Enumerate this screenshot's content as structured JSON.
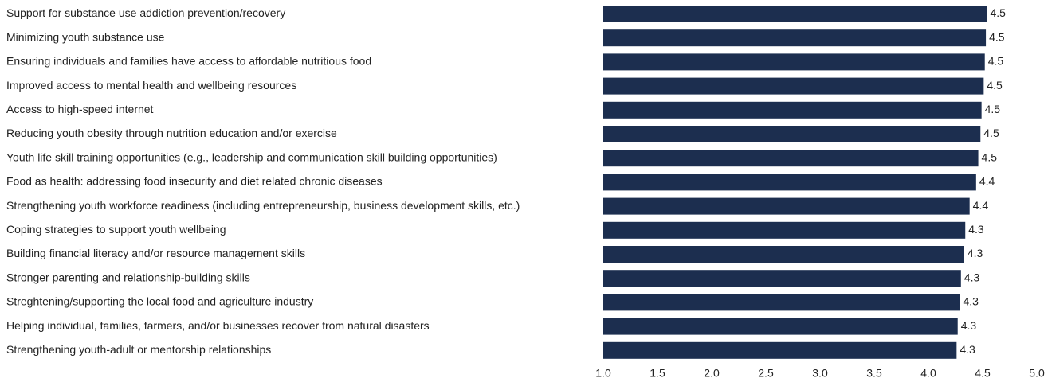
{
  "chart_data": {
    "type": "bar",
    "orientation": "horizontal",
    "categories": [
      "Support for substance use addiction prevention/recovery",
      "Minimizing youth substance use",
      "Ensuring individuals and families have access to affordable nutritious food",
      "Improved access to mental health and wellbeing resources",
      "Access to high-speed internet",
      "Reducing youth obesity through nutrition education and/or exercise",
      "Youth life skill training opportunities (e.g., leadership and communication skill building opportunities)",
      "Food as health: addressing food insecurity and diet related chronic diseases",
      "Strengthening youth workforce readiness (including entrepreneurship, business development skills, etc.)",
      "Coping strategies to support youth wellbeing",
      "Building financial literacy and/or resource management skills",
      "Stronger parenting and relationship-building skills",
      "Streghtening/supporting the local food and agriculture industry",
      "Helping individual, families, farmers, and/or businesses recover from natural disasters",
      "Strengthening youth-adult or mentorship relationships"
    ],
    "values": [
      4.54,
      4.53,
      4.52,
      4.51,
      4.49,
      4.48,
      4.46,
      4.44,
      4.38,
      4.34,
      4.33,
      4.3,
      4.29,
      4.27,
      4.26
    ],
    "value_labels": [
      "4.5",
      "4.5",
      "4.5",
      "4.5",
      "4.5",
      "4.5",
      "4.5",
      "4.4",
      "4.4",
      "4.3",
      "4.3",
      "4.3",
      "4.3",
      "4.3",
      "4.3"
    ],
    "color": "#1c2e4f",
    "xlim": [
      1,
      5
    ],
    "xticks": [
      {
        "value": 1,
        "label": "1.0"
      },
      {
        "value": 1.5,
        "label": "1.5"
      },
      {
        "value": 2,
        "label": "2.0"
      },
      {
        "value": 2.5,
        "label": "2.5"
      },
      {
        "value": 3,
        "label": "3.0"
      },
      {
        "value": 3.5,
        "label": "3.5"
      },
      {
        "value": 4,
        "label": "4.0"
      },
      {
        "value": 4.5,
        "label": "4.5"
      },
      {
        "value": 5,
        "label": "5.0"
      }
    ],
    "grid": false
  }
}
